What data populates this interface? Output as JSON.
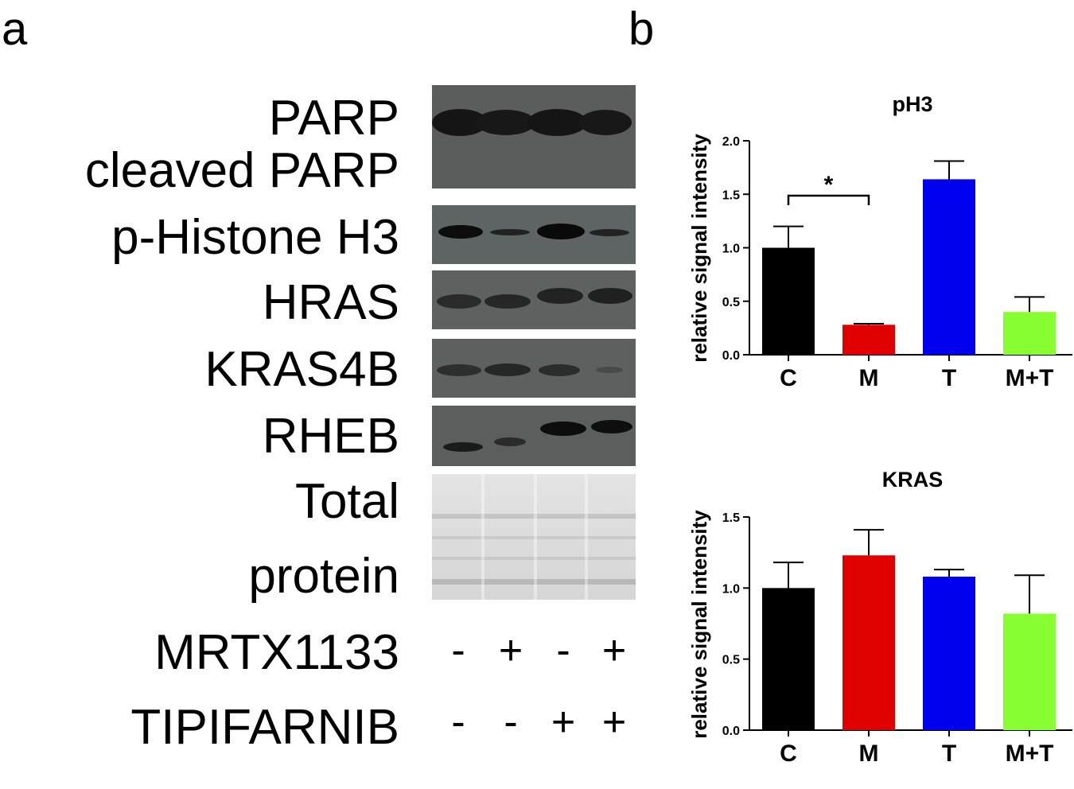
{
  "panel_a": {
    "letter": "a",
    "labels": {
      "parp": "PARP",
      "cleaved_parp": "cleaved PARP",
      "p_histone": "p-Histone H3",
      "hras": "HRAS",
      "kras4b": "KRAS4B",
      "rheb": "RHEB",
      "total": "Total",
      "protein": "protein"
    },
    "treatments": [
      {
        "name": "MRTX1133",
        "signs": [
          "-",
          "+",
          "-",
          "+"
        ]
      },
      {
        "name": "TIPIFARNIB",
        "signs": [
          "-",
          "-",
          "+",
          "+"
        ]
      }
    ]
  },
  "panel_b": {
    "letter": "b"
  },
  "chart_data": [
    {
      "type": "bar",
      "title": "pH3",
      "xlabel": "",
      "ylabel": "relative signal intensity",
      "categories": [
        "C",
        "M",
        "T",
        "M+T"
      ],
      "values": [
        1.0,
        0.28,
        1.64,
        0.4
      ],
      "errors": [
        0.2,
        0.01,
        0.17,
        0.14
      ],
      "colors": [
        "#000000",
        "#e00000",
        "#0000ee",
        "#88ff33"
      ],
      "ylim": [
        0,
        2.0
      ],
      "yticks": [
        "0.0",
        "0.5",
        "1.0",
        "1.5",
        "2.0"
      ],
      "significance": {
        "from": "C",
        "to": "M",
        "label": "*"
      }
    },
    {
      "type": "bar",
      "title": "KRAS",
      "xlabel": "",
      "ylabel": "relative signal intensity",
      "categories": [
        "C",
        "M",
        "T",
        "M+T"
      ],
      "values": [
        1.0,
        1.23,
        1.08,
        0.82
      ],
      "errors": [
        0.18,
        0.18,
        0.05,
        0.27
      ],
      "colors": [
        "#000000",
        "#e00000",
        "#0000ee",
        "#88ff33"
      ],
      "ylim": [
        0,
        1.5
      ],
      "yticks": [
        "0.0",
        "0.5",
        "1.0",
        "1.5"
      ]
    }
  ]
}
